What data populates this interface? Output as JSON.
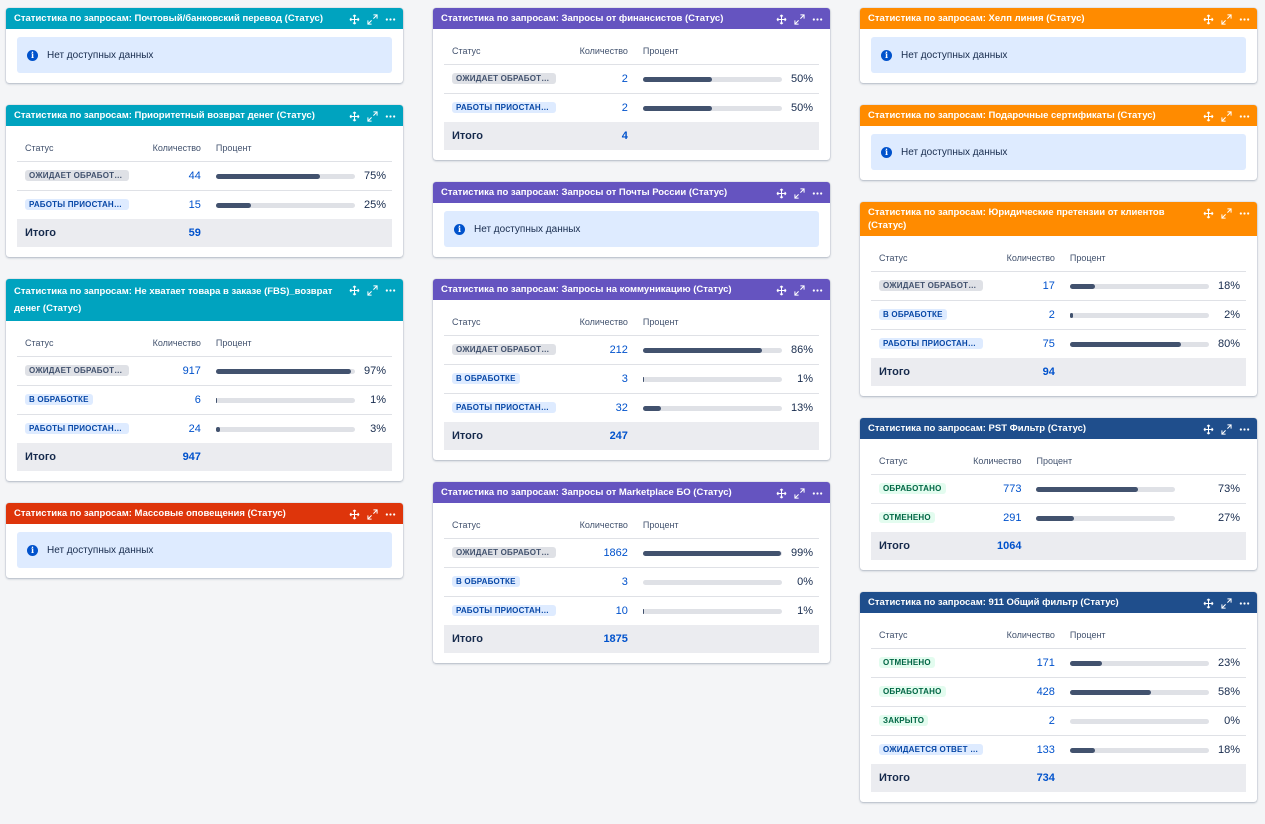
{
  "colors": {
    "teal": "#00a3bf",
    "purple": "#6554c0",
    "orange": "#ff8b00",
    "red": "#de350b",
    "navy": "#1f4e8c",
    "info_bg": "#deebff",
    "link": "#0052cc"
  },
  "labels": {
    "no_data": "Нет доступных данных",
    "col_status": "Статус",
    "col_count": "Количество",
    "col_percent": "Процент",
    "total": "Итого"
  },
  "icons": [
    "move-icon",
    "expand-icon",
    "more-icon",
    "info-icon"
  ],
  "columns": [
    [
      {
        "title": "Статистика по запросам: Почтовый/банковский перевод (Статус)",
        "color": "teal",
        "nodata": true
      },
      {
        "title": "Статистика по запросам: Приоритетный возврат денег (Статус)",
        "color": "teal",
        "count_w": 85,
        "rows": [
          {
            "status": "ОЖИДАЕТ ОБРАБОТКИ",
            "style": "grey",
            "count": "44",
            "pct": 75,
            "pct_label": "75%"
          },
          {
            "status": "РАБОТЫ ПРИОСТАНОВЛЕНЫ",
            "style": "blue",
            "count": "15",
            "pct": 25,
            "pct_label": "25%"
          }
        ],
        "total": "59"
      },
      {
        "title": "Статистика по запросам: Не хватает товара в заказе (FBS)_возврат денег (Статус)",
        "color": "teal",
        "count_w": 85,
        "rows": [
          {
            "status": "ОЖИДАЕТ ОБРАБОТКИ",
            "style": "grey",
            "count": "917",
            "pct": 97,
            "pct_label": "97%"
          },
          {
            "status": "В ОБРАБОТКЕ",
            "style": "blue",
            "count": "6",
            "pct": 1,
            "pct_label": "1%"
          },
          {
            "status": "РАБОТЫ ПРИОСТАНОВЛЕНЫ",
            "style": "blue",
            "count": "24",
            "pct": 3,
            "pct_label": "3%"
          }
        ],
        "total": "947"
      },
      {
        "title": "Статистика по запросам: Массовые оповещения (Статус)",
        "color": "red",
        "nodata": true
      }
    ],
    [
      {
        "title": "Статистика по запросам: Запросы от финансистов (Статус)",
        "color": "purple",
        "count_w": 85,
        "rows": [
          {
            "status": "ОЖИДАЕТ ОБРАБОТКИ",
            "style": "grey",
            "count": "2",
            "pct": 50,
            "pct_label": "50%"
          },
          {
            "status": "РАБОТЫ ПРИОСТАНОВЛЕНЫ",
            "style": "blue",
            "count": "2",
            "pct": 50,
            "pct_label": "50%"
          }
        ],
        "total": "4"
      },
      {
        "title": "Статистика по запросам: Запросы от Почты России (Статус)",
        "color": "purple",
        "nodata": true
      },
      {
        "title": "Статистика по запросам: Запросы на коммуникацию (Статус)",
        "color": "purple",
        "count_w": 85,
        "rows": [
          {
            "status": "ОЖИДАЕТ ОБРАБОТКИ",
            "style": "grey",
            "count": "212",
            "pct": 86,
            "pct_label": "86%"
          },
          {
            "status": "В ОБРАБОТКЕ",
            "style": "blue",
            "count": "3",
            "pct": 1,
            "pct_label": "1%"
          },
          {
            "status": "РАБОТЫ ПРИОСТАНОВЛЕНЫ",
            "style": "blue",
            "count": "32",
            "pct": 13,
            "pct_label": "13%"
          }
        ],
        "total": "247"
      },
      {
        "title": "Статистика по запросам: Запросы от Marketplace БО (Статус)",
        "color": "purple",
        "count_w": 85,
        "rows": [
          {
            "status": "ОЖИДАЕТ ОБРАБОТКИ",
            "style": "grey",
            "count": "1862",
            "pct": 99,
            "pct_label": "99%"
          },
          {
            "status": "В ОБРАБОТКЕ",
            "style": "blue",
            "count": "3",
            "pct": 0,
            "pct_label": "0%"
          },
          {
            "status": "РАБОТЫ ПРИОСТАНОВЛЕНЫ",
            "style": "blue",
            "count": "10",
            "pct": 1,
            "pct_label": "1%"
          }
        ],
        "total": "1875"
      }
    ],
    [
      {
        "title": "Статистика по запросам: Хелп линия (Статус)",
        "color": "orange",
        "nodata": true
      },
      {
        "title": "Статистика по запросам: Подарочные сертификаты (Статус)",
        "color": "orange",
        "nodata": true
      },
      {
        "title": "Статистика по запросам: Юридические претензии от клиентов (Статус)",
        "color": "orange",
        "count_w": 85,
        "rows": [
          {
            "status": "ОЖИДАЕТ ОБРАБОТКИ",
            "style": "grey",
            "count": "17",
            "pct": 18,
            "pct_label": "18%"
          },
          {
            "status": "В ОБРАБОТКЕ",
            "style": "blue",
            "count": "2",
            "pct": 2,
            "pct_label": "2%"
          },
          {
            "status": "РАБОТЫ ПРИОСТАНОВЛЕНЫ",
            "style": "blue",
            "count": "75",
            "pct": 80,
            "pct_label": "80%"
          }
        ],
        "total": "94"
      },
      {
        "title": "Статистика по запросам: PST Фильтр (Статус)",
        "color": "navy",
        "count_w": 60,
        "rows": [
          {
            "status": "ОБРАБОТАНО",
            "style": "green",
            "count": "773",
            "pct": 73,
            "pct_label": "73%"
          },
          {
            "status": "ОТМЕНЕНО",
            "style": "green",
            "count": "291",
            "pct": 27,
            "pct_label": "27%"
          }
        ],
        "total": "1064"
      },
      {
        "title": "Статистика по запросам: 911 Общий фильтр (Статус)",
        "color": "navy",
        "count_w": 85,
        "rows": [
          {
            "status": "ОТМЕНЕНО",
            "style": "green",
            "count": "171",
            "pct": 23,
            "pct_label": "23%"
          },
          {
            "status": "ОБРАБОТАНО",
            "style": "green",
            "count": "428",
            "pct": 58,
            "pct_label": "58%"
          },
          {
            "status": "ЗАКРЫТО",
            "style": "green",
            "count": "2",
            "pct": 0,
            "pct_label": "0%"
          },
          {
            "status": "ОЖИДАЕТСЯ ОТВЕТ ПОЛЬЗОВАТЕЛЯ",
            "style": "blue",
            "count": "133",
            "pct": 18,
            "pct_label": "18%"
          }
        ],
        "total": "734"
      }
    ]
  ]
}
